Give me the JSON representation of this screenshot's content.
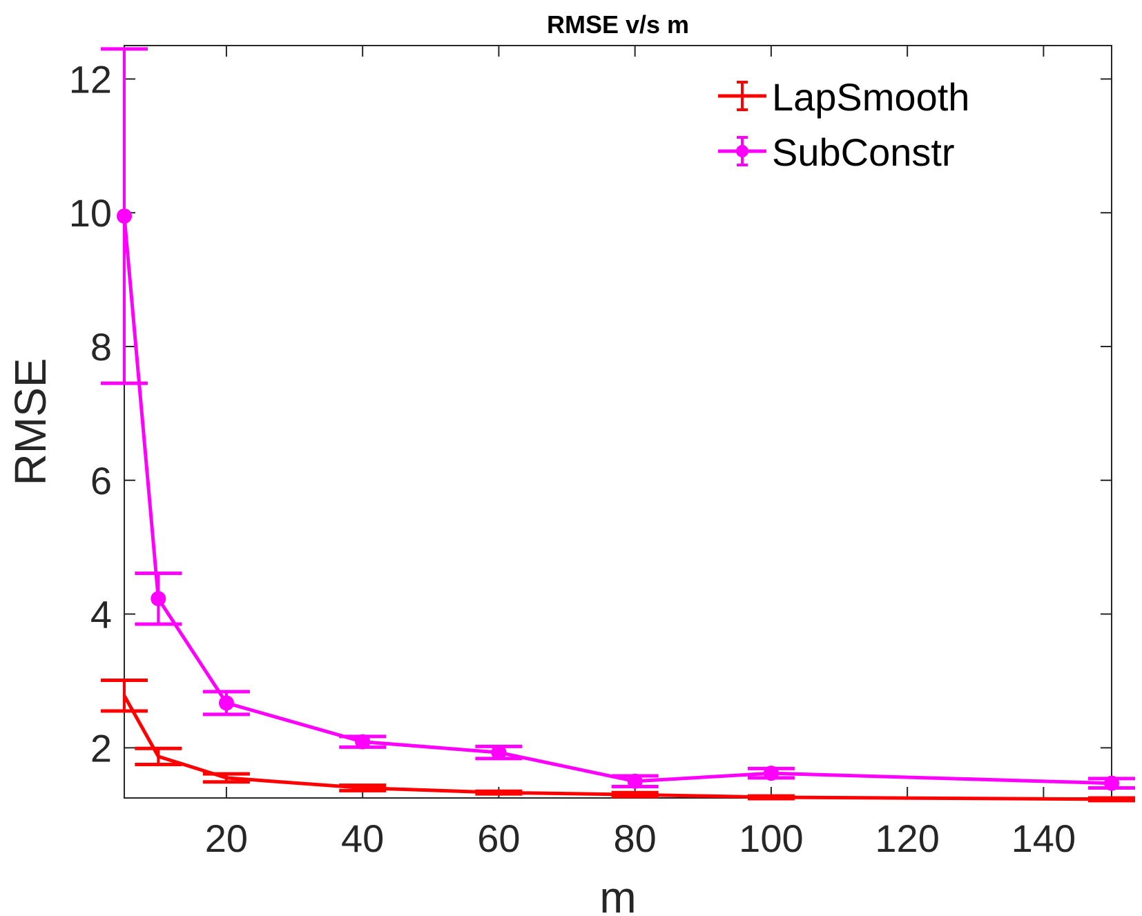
{
  "chart_data": {
    "type": "line",
    "title": "RMSE v/s m",
    "xlabel": "m",
    "ylabel": "RMSE",
    "xlim": [
      5,
      150
    ],
    "ylim": [
      1.25,
      12.5
    ],
    "xticks": [
      20,
      40,
      60,
      80,
      100,
      120,
      140
    ],
    "yticks": [
      2,
      4,
      6,
      8,
      10,
      12
    ],
    "grid": false,
    "legend_position": "top-right",
    "x": [
      5,
      10,
      20,
      40,
      60,
      80,
      100,
      150
    ],
    "series": [
      {
        "name": "LapSmooth",
        "color": "#ff0000",
        "marker": "none",
        "values": [
          2.78,
          1.87,
          1.55,
          1.4,
          1.33,
          1.3,
          1.26,
          1.23
        ],
        "err_low": [
          2.55,
          1.75,
          1.49,
          1.36,
          1.31,
          1.27,
          1.24,
          1.21
        ],
        "err_high": [
          3.01,
          1.99,
          1.61,
          1.44,
          1.35,
          1.33,
          1.28,
          1.25
        ]
      },
      {
        "name": "SubConstr",
        "color": "#ff00ff",
        "marker": "dot",
        "values": [
          9.95,
          4.23,
          2.67,
          2.09,
          1.93,
          1.5,
          1.62,
          1.47
        ],
        "err_low": [
          7.45,
          3.85,
          2.5,
          2.01,
          1.84,
          1.42,
          1.55,
          1.4
        ],
        "err_high": [
          12.45,
          4.61,
          2.84,
          2.17,
          2.02,
          1.58,
          1.69,
          1.54
        ]
      }
    ]
  }
}
